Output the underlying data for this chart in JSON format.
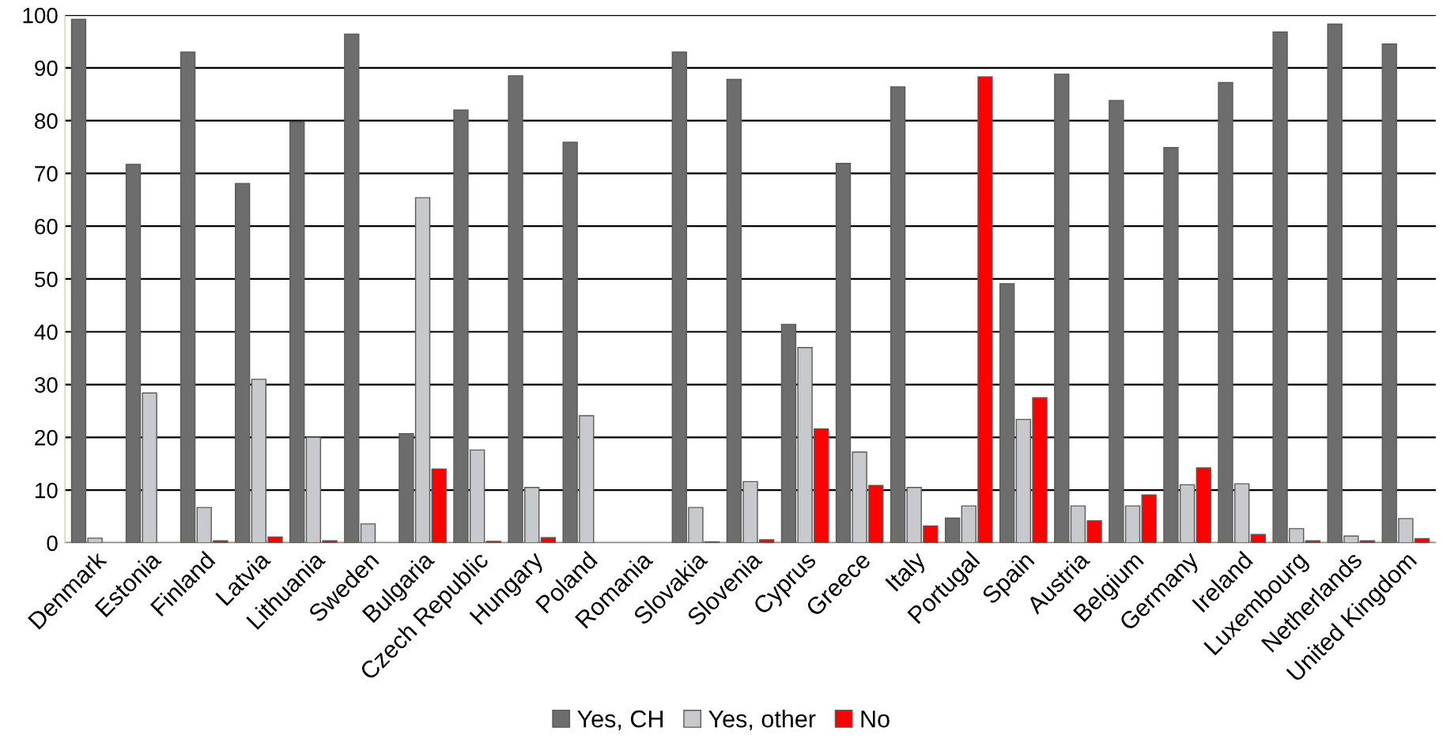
{
  "chart_data": {
    "type": "bar",
    "categories": [
      "Denmark",
      "Estonia",
      "Finland",
      "Latvia",
      "Lithuania",
      "Sweden",
      "Bulgaria",
      "Czech Republic",
      "Hungary",
      "Poland",
      "Romania",
      "Slovakia",
      "Slovenia",
      "Cyprus",
      "Greece",
      "Italy",
      "Portugal",
      "Spain",
      "Austria",
      "Belgium",
      "Germany",
      "Ireland",
      "Luxembourg",
      "Netherlands",
      "United Kingdom"
    ],
    "series": [
      {
        "name": "Yes, CH",
        "color": "#6d6d6d",
        "values": [
          99.2,
          71.7,
          93,
          68.1,
          79.7,
          96.4,
          20.7,
          82,
          88.5,
          75.9,
          0,
          93,
          87.8,
          41.4,
          71.9,
          86.4,
          4.7,
          49.1,
          88.8,
          83.8,
          74.9,
          87.2,
          96.8,
          98.3,
          94.5
        ]
      },
      {
        "name": "Yes, other",
        "color": "#c8c9cd",
        "values": [
          0.9,
          28.4,
          6.7,
          31,
          20,
          3.6,
          65.4,
          17.6,
          10.5,
          24.1,
          0,
          6.7,
          11.6,
          37,
          17.2,
          10.5,
          7,
          23.4,
          7,
          7,
          11,
          11.2,
          2.7,
          1.3,
          4.6
        ]
      },
      {
        "name": "No",
        "color": "#ff0000",
        "values": [
          0,
          0,
          0.4,
          1.1,
          0.4,
          0,
          14,
          0.3,
          1,
          0,
          0,
          0.2,
          0.6,
          21.6,
          10.9,
          3.2,
          88.3,
          27.5,
          4.2,
          9.1,
          14.2,
          1.6,
          0.4,
          0.4,
          0.8
        ]
      }
    ],
    "ylim": [
      0,
      100
    ],
    "yticks": [
      0,
      10,
      20,
      30,
      40,
      50,
      60,
      70,
      80,
      90,
      100
    ],
    "grid": "y",
    "legend": "bottom"
  }
}
